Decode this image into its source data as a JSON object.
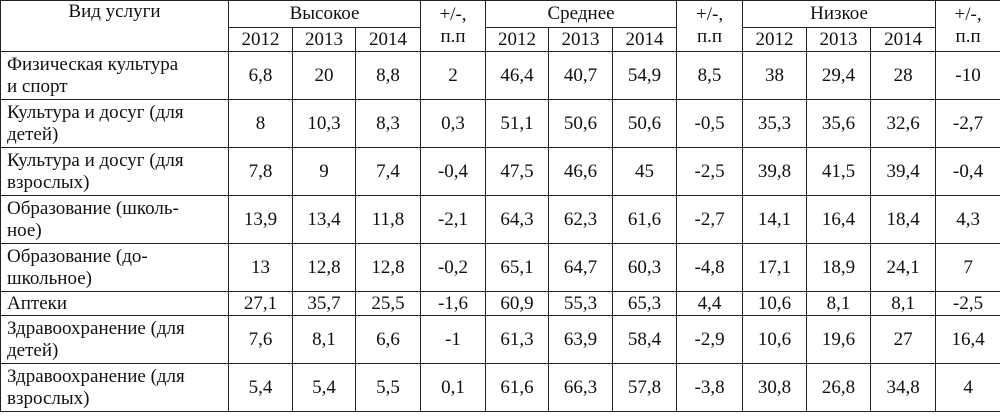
{
  "table": {
    "header": {
      "service": "Вид услуги",
      "groups": [
        {
          "label": "Высокое",
          "years": [
            "2012",
            "2013",
            "2014"
          ],
          "change": [
            "+/-,",
            "п.п"
          ]
        },
        {
          "label": "Среднее",
          "years": [
            "2012",
            "2013",
            "2014"
          ],
          "change": [
            "+/-,",
            "п.п"
          ]
        },
        {
          "label": "Низкое",
          "years": [
            "2012",
            "2013",
            "2014"
          ],
          "change": [
            "+/-,",
            "п.п"
          ]
        }
      ]
    },
    "rows": [
      {
        "label": [
          "Физическая культура",
          "и спорт"
        ],
        "values": [
          "6,8",
          "20",
          "8,8",
          "2",
          "46,4",
          "40,7",
          "54,9",
          "8,5",
          "38",
          "29,4",
          "28",
          "-10"
        ]
      },
      {
        "label": [
          "Культура и досуг (для",
          "детей)"
        ],
        "values": [
          "8",
          "10,3",
          "8,3",
          "0,3",
          "51,1",
          "50,6",
          "50,6",
          "-0,5",
          "35,3",
          "35,6",
          "32,6",
          "-2,7"
        ]
      },
      {
        "label": [
          "Культура и досуг (для",
          "взрослых)"
        ],
        "values": [
          "7,8",
          "9",
          "7,4",
          "-0,4",
          "47,5",
          "46,6",
          "45",
          "-2,5",
          "39,8",
          "41,5",
          "39,4",
          "-0,4"
        ]
      },
      {
        "label": [
          "Образование (школь-",
          "ное)"
        ],
        "values": [
          "13,9",
          "13,4",
          "11,8",
          "-2,1",
          "64,3",
          "62,3",
          "61,6",
          "-2,7",
          "14,1",
          "16,4",
          "18,4",
          "4,3"
        ]
      },
      {
        "label": [
          "Образование (до-",
          "школьное)"
        ],
        "values": [
          "13",
          "12,8",
          "12,8",
          "-0,2",
          "65,1",
          "64,7",
          "60,3",
          "-4,8",
          "17,1",
          "18,9",
          "24,1",
          "7"
        ]
      },
      {
        "label": [
          "Аптеки"
        ],
        "values": [
          "27,1",
          "35,7",
          "25,5",
          "-1,6",
          "60,9",
          "55,3",
          "65,3",
          "4,4",
          "10,6",
          "8,1",
          "8,1",
          "-2,5"
        ]
      },
      {
        "label": [
          "Здравоохранение (для",
          "детей)"
        ],
        "values": [
          "7,6",
          "8,1",
          "6,6",
          "-1",
          "61,3",
          "63,9",
          "58,4",
          "-2,9",
          "10,6",
          "19,6",
          "27",
          "16,4"
        ]
      },
      {
        "label": [
          "Здравоохранение (для",
          "взрослых)"
        ],
        "values": [
          "5,4",
          "5,4",
          "5,5",
          "0,1",
          "61,6",
          "66,3",
          "57,8",
          "-3,8",
          "30,8",
          "26,8",
          "34,8",
          "4"
        ]
      }
    ]
  }
}
